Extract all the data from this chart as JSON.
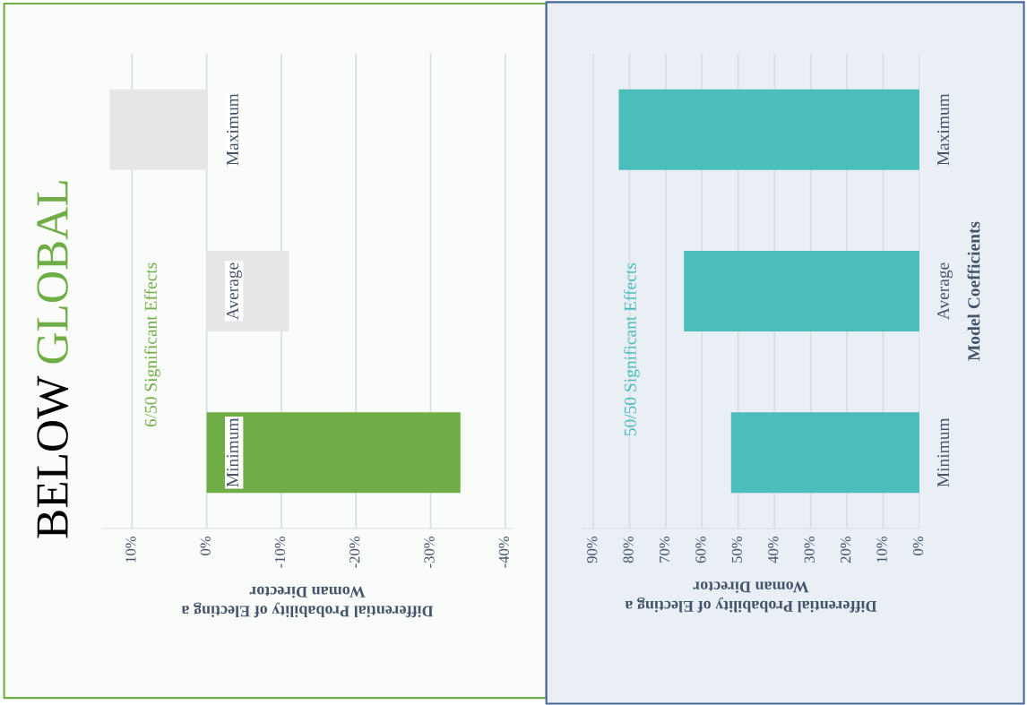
{
  "chart_data": [
    {
      "type": "bar",
      "orientation": "horizontal",
      "title": "BELOW GLOBAL",
      "categories": [
        "Maximum",
        "Average",
        "Minimum"
      ],
      "values": [
        13,
        -11,
        -34
      ],
      "colors": [
        "#e6e6e6",
        "#e6e6e6",
        "#70ad47"
      ],
      "xlim": [
        14,
        -41
      ],
      "xticks": [
        {
          "value": 10,
          "label": "10%"
        },
        {
          "value": 0,
          "label": "0%"
        },
        {
          "value": -10,
          "label": "-10%"
        },
        {
          "value": -20,
          "label": "-20%"
        },
        {
          "value": -30,
          "label": "-30%"
        },
        {
          "value": -40,
          "label": "-40%"
        }
      ],
      "xlabel": "Differential Probability of Electing a\nWoman Director",
      "annotations": [
        "6/50 Significant Effects"
      ],
      "grid": "x"
    },
    {
      "type": "bar",
      "orientation": "horizontal",
      "categories": [
        "Maximum",
        "Average",
        "Minimum"
      ],
      "values": [
        83,
        65,
        52
      ],
      "colors": [
        "#4bbdbb",
        "#4bbdbb",
        "#4bbdbb"
      ],
      "xlim": [
        93,
        0
      ],
      "xticks": [
        {
          "value": 90,
          "label": "90%"
        },
        {
          "value": 80,
          "label": "80%"
        },
        {
          "value": 70,
          "label": "70%"
        },
        {
          "value": 60,
          "label": "60%"
        },
        {
          "value": 50,
          "label": "50%"
        },
        {
          "value": 40,
          "label": "40%"
        },
        {
          "value": 30,
          "label": "30%"
        },
        {
          "value": 20,
          "label": "20%"
        },
        {
          "value": 10,
          "label": "10%"
        },
        {
          "value": 0,
          "label": "0%"
        }
      ],
      "xlabel": "Differential Probability of Electing a\nWoman Director",
      "ylabel": "Model Coefficients",
      "annotations": [
        "50/50 Significant Effects"
      ],
      "grid": "x"
    }
  ]
}
